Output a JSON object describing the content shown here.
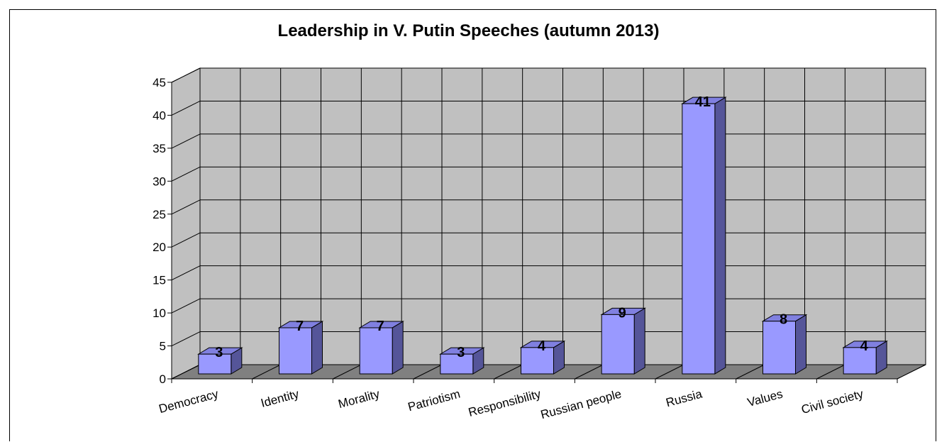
{
  "chart_data": {
    "type": "bar",
    "title": "Leadership in V. Putin Speeches (autumn 2013)",
    "categories": [
      "Democracy",
      "Identity",
      "Morality",
      "Patriotism",
      "Responsibility",
      "Russian people",
      "Russia",
      "Values",
      "Civil society"
    ],
    "values": [
      3,
      7,
      7,
      3,
      4,
      9,
      41,
      8,
      4
    ],
    "ylim": [
      0,
      45
    ],
    "yticks": [
      0,
      5,
      10,
      15,
      20,
      25,
      30,
      35,
      40,
      45
    ],
    "xlabel": "",
    "ylabel": "",
    "grid": true,
    "legend": "none",
    "style": "3d",
    "colors": {
      "bar_front": "#9999FF",
      "bar_top": "#8080E0",
      "bar_side": "#555599",
      "wall": "#C0C0C0",
      "floor": "#808080",
      "grid": "#000000"
    }
  }
}
